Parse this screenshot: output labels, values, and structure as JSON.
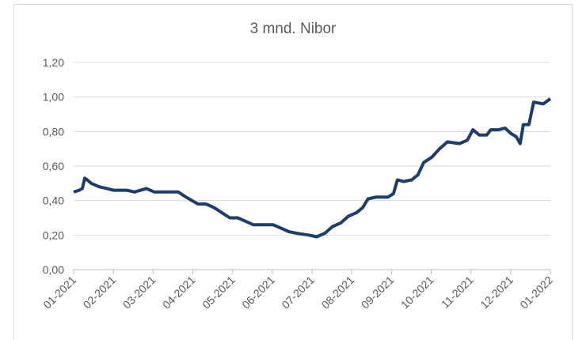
{
  "chart_data": {
    "type": "line",
    "title": "3 mnd. Nibor",
    "xlim": [
      0,
      12
    ],
    "xticks": [
      {
        "value": 0,
        "label": "01-2021"
      },
      {
        "value": 1,
        "label": "02-2021"
      },
      {
        "value": 2,
        "label": "03-2021"
      },
      {
        "value": 3,
        "label": "04-2021"
      },
      {
        "value": 4,
        "label": "05-2021"
      },
      {
        "value": 5,
        "label": "06-2021"
      },
      {
        "value": 6,
        "label": "07-2021"
      },
      {
        "value": 7,
        "label": "08-2021"
      },
      {
        "value": 8,
        "label": "09-2021"
      },
      {
        "value": 9,
        "label": "10-2021"
      },
      {
        "value": 10,
        "label": "11-2021"
      },
      {
        "value": 11,
        "label": "12-2021"
      },
      {
        "value": 12,
        "label": "01-2022"
      }
    ],
    "ylim": [
      0,
      1.2
    ],
    "yticks": [
      {
        "value": 0,
        "label": "0,00"
      },
      {
        "value": 0.2,
        "label": "0,20"
      },
      {
        "value": 0.4,
        "label": "0,40"
      },
      {
        "value": 0.6,
        "label": "0,60"
      },
      {
        "value": 0.8,
        "label": "0,80"
      },
      {
        "value": 1.0,
        "label": "1,00"
      },
      {
        "value": 1.2,
        "label": "1,20"
      }
    ],
    "grid": true,
    "x": [
      0,
      0.14,
      0.22,
      0.28,
      0.34,
      0.44,
      0.64,
      0.84,
      1.0,
      1.34,
      1.53,
      1.83,
      2.03,
      2.43,
      2.63,
      2.83,
      3.13,
      3.33,
      3.53,
      3.73,
      3.93,
      4.13,
      4.33,
      4.52,
      5.02,
      5.22,
      5.42,
      5.62,
      5.92,
      6.12,
      6.32,
      6.52,
      6.72,
      6.92,
      7.12,
      7.28,
      7.41,
      7.61,
      7.91,
      8.05,
      8.15,
      8.31,
      8.51,
      8.67,
      8.81,
      9.01,
      9.21,
      9.41,
      9.71,
      9.91,
      10.05,
      10.21,
      10.4,
      10.5,
      10.7,
      10.86,
      11.0,
      11.14,
      11.24,
      11.32,
      11.46,
      11.58,
      11.82,
      12
    ],
    "series": [
      {
        "color": "#1f3d6b",
        "values": [
          0.45,
          0.46,
          0.47,
          0.53,
          0.52,
          0.5,
          0.48,
          0.47,
          0.46,
          0.46,
          0.45,
          0.47,
          0.45,
          0.45,
          0.45,
          0.42,
          0.38,
          0.38,
          0.36,
          0.33,
          0.3,
          0.3,
          0.28,
          0.26,
          0.26,
          0.24,
          0.22,
          0.21,
          0.2,
          0.19,
          0.21,
          0.25,
          0.27,
          0.31,
          0.33,
          0.36,
          0.41,
          0.42,
          0.42,
          0.44,
          0.52,
          0.51,
          0.52,
          0.55,
          0.62,
          0.65,
          0.7,
          0.74,
          0.73,
          0.75,
          0.81,
          0.78,
          0.78,
          0.81,
          0.81,
          0.82,
          0.79,
          0.77,
          0.73,
          0.84,
          0.84,
          0.97,
          0.96,
          0.99
        ]
      }
    ]
  }
}
